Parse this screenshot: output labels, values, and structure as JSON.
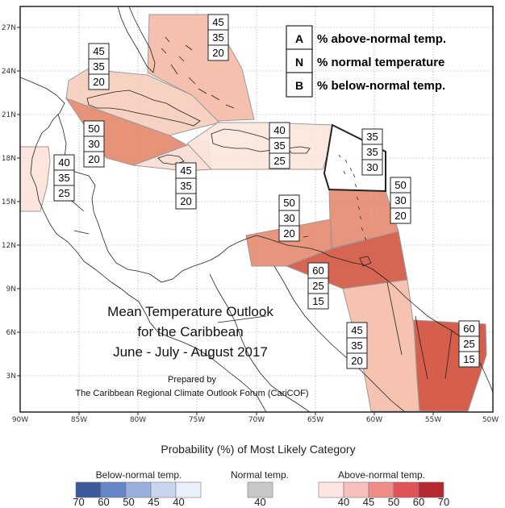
{
  "map": {
    "title_lines": [
      "Mean Temperature Outlook",
      "for the Caribbean",
      "June - July - August 2017"
    ],
    "credit_lines": [
      "Prepared by",
      "The Caribbean Regional Climate Outlook Forum (CariCOF)"
    ],
    "lon_ticks": [
      "90W",
      "85W",
      "80W",
      "75W",
      "70W",
      "65W",
      "60W",
      "55W",
      "50W"
    ],
    "lat_ticks": [
      "3N",
      "6N",
      "9N",
      "12N",
      "15N",
      "18N",
      "21N",
      "24N",
      "27N"
    ]
  },
  "key_legend": [
    {
      "key": "A",
      "desc": "% above-normal temp."
    },
    {
      "key": "N",
      "desc": "% normal temperature"
    },
    {
      "key": "B",
      "desc": "% below-normal temp."
    }
  ],
  "regions": [
    {
      "name": "bahamas",
      "values": [
        "45",
        "35",
        "20"
      ],
      "color": "#f5b9a6"
    },
    {
      "name": "cuba",
      "values": [
        "45",
        "35",
        "20"
      ],
      "color": "#f6cdbd"
    },
    {
      "name": "western-caribbean",
      "values": [
        "50",
        "30",
        "20"
      ],
      "color": "#e4876c"
    },
    {
      "name": "central-america",
      "values": [
        "40",
        "35",
        "25"
      ],
      "color": "#fbe2d8"
    },
    {
      "name": "jamaica",
      "values": [
        "45",
        "35",
        "20"
      ],
      "color": "#f8ddd2"
    },
    {
      "name": "hispaniola",
      "values": [
        "40",
        "35",
        "25"
      ],
      "color": "#fbe5dc"
    },
    {
      "name": "leeward-islands",
      "values": [
        "35",
        "35",
        "30"
      ],
      "color": "#ffffff"
    },
    {
      "name": "windward-islands",
      "values": [
        "50",
        "30",
        "20"
      ],
      "color": "#e48a6e"
    },
    {
      "name": "abc-islands",
      "values": [
        "50",
        "30",
        "20"
      ],
      "color": "#e48a6e"
    },
    {
      "name": "trinidad",
      "values": [
        "60",
        "25",
        "15"
      ],
      "color": "#d35441"
    },
    {
      "name": "guyana",
      "values": [
        "45",
        "35",
        "20"
      ],
      "color": "#f6bca8"
    },
    {
      "name": "suriname-guiana",
      "values": [
        "60",
        "25",
        "15"
      ],
      "color": "#d24c3a"
    }
  ],
  "scale": {
    "title": "Probability (%) of Most Likely Category",
    "below": {
      "label": "Below-normal temp.",
      "numbers": [
        "70",
        "60",
        "50",
        "45",
        "40"
      ],
      "colors": [
        "#3a5a9c",
        "#6685c6",
        "#98aedb",
        "#c9d5ee",
        "#e9f0fb"
      ]
    },
    "normal": {
      "label": "Normal temp.",
      "numbers": [
        "40"
      ],
      "colors": [
        "#c8c8c8"
      ]
    },
    "above": {
      "label": "Above-normal temp.",
      "numbers": [
        "40",
        "45",
        "50",
        "60",
        "70"
      ],
      "colors": [
        "#fde5e2",
        "#f7c0bd",
        "#ef8c87",
        "#e05457",
        "#b52a32"
      ]
    }
  }
}
